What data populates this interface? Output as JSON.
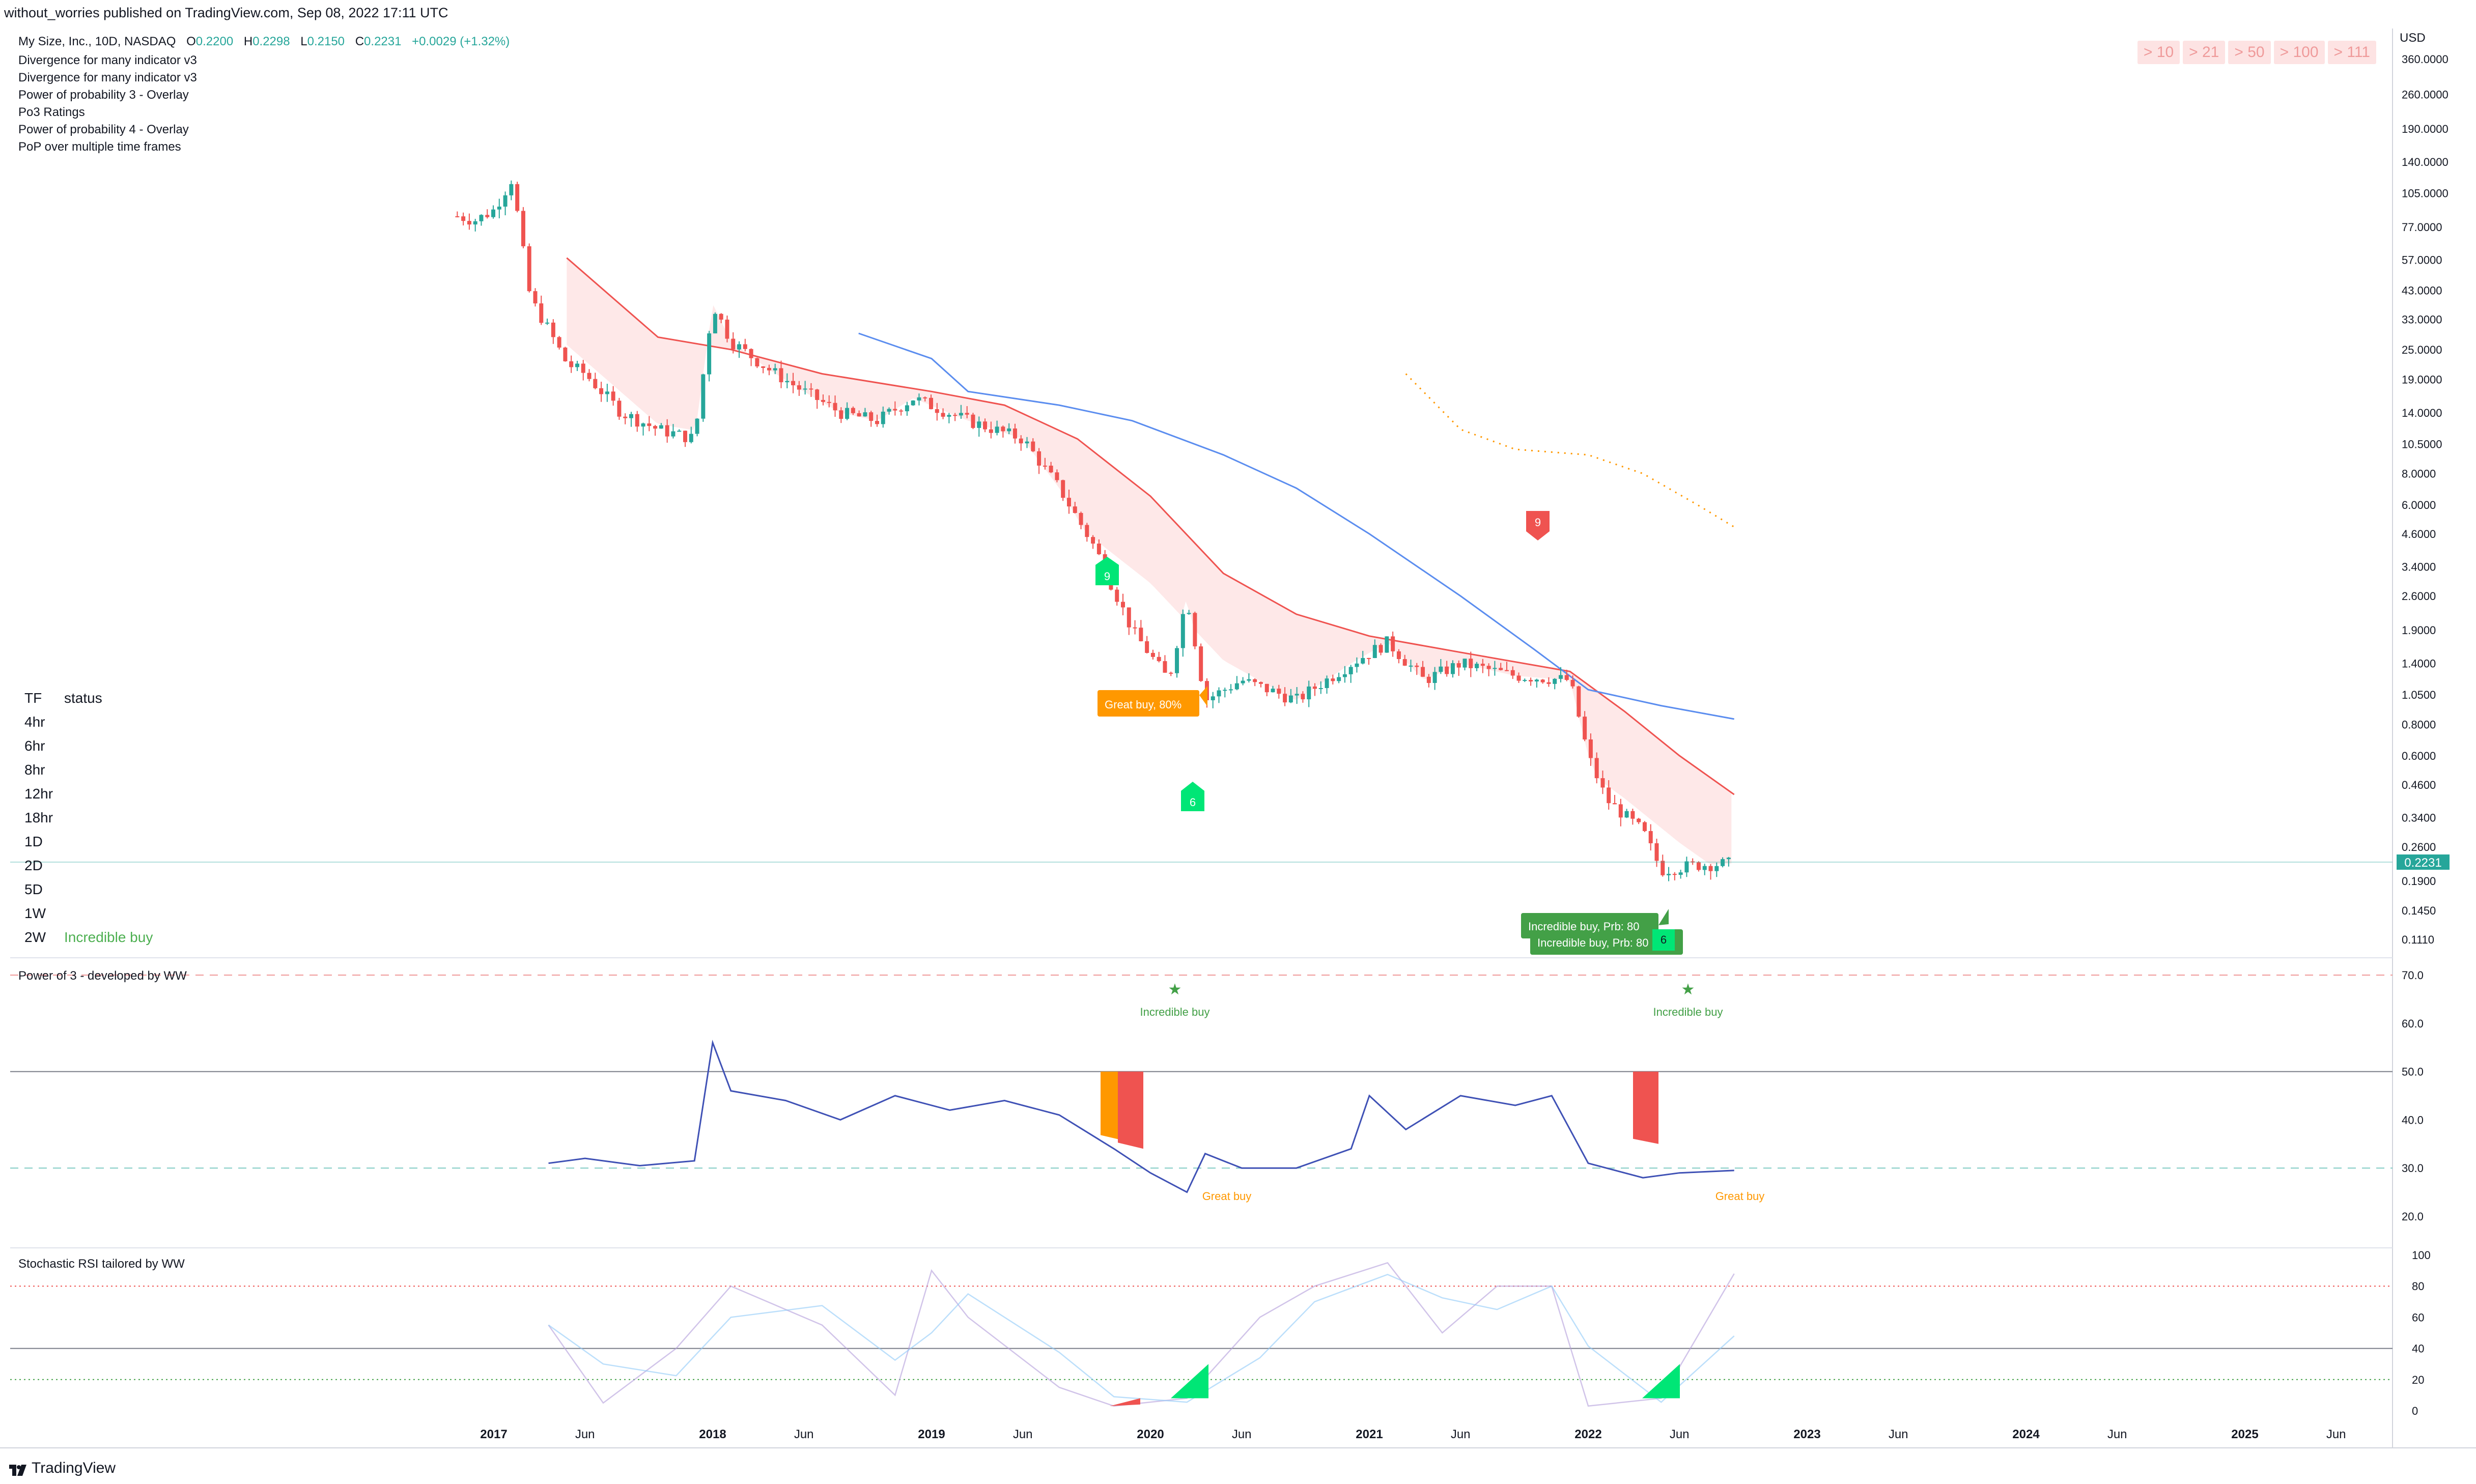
{
  "header": {
    "published": "without_worries published on TradingView.com, Sep 08, 2022 17:11 UTC"
  },
  "symbol": {
    "name": "My Size, Inc., 10D, NASDAQ",
    "o_label": "O",
    "o": "0.2200",
    "h_label": "H",
    "h": "0.2298",
    "l_label": "L",
    "l": "0.2150",
    "c_label": "C",
    "c": "0.2231",
    "change": "+0.0029 (+1.32%)"
  },
  "indicators": [
    "Divergence for many indicator v3",
    "Divergence for many indicator v3",
    "Power of probability 3 - Overlay",
    "Po3 Ratings",
    "Power of probability 4 - Overlay",
    "PoP over multiple time frames"
  ],
  "badges": [
    "> 10",
    "> 21",
    "> 50",
    "> 100",
    "> 111"
  ],
  "tf_table": {
    "header": {
      "tf": "TF",
      "status": "status"
    },
    "rows": [
      {
        "tf": "4hr",
        "status": ""
      },
      {
        "tf": "6hr",
        "status": ""
      },
      {
        "tf": "8hr",
        "status": ""
      },
      {
        "tf": "12hr",
        "status": ""
      },
      {
        "tf": "18hr",
        "status": ""
      },
      {
        "tf": "1D",
        "status": ""
      },
      {
        "tf": "2D",
        "status": ""
      },
      {
        "tf": "5D",
        "status": ""
      },
      {
        "tf": "1W",
        "status": ""
      },
      {
        "tf": "2W",
        "status": "Incredible buy"
      }
    ]
  },
  "price_axis": {
    "currency": "USD",
    "ticks": [
      "360.0000",
      "260.0000",
      "190.0000",
      "140.0000",
      "105.0000",
      "77.0000",
      "57.0000",
      "43.0000",
      "33.0000",
      "25.0000",
      "19.0000",
      "14.0000",
      "10.5000",
      "8.0000",
      "6.0000",
      "4.6000",
      "3.4000",
      "2.6000",
      "1.9000",
      "1.4000",
      "1.0500",
      "0.8000",
      "0.6000",
      "0.4600",
      "0.3400",
      "0.2600",
      "0.1900",
      "0.1450",
      "0.1110"
    ],
    "last_price": "0.2231"
  },
  "annotations": {
    "great_buy_box": "Great buy,  80%",
    "incredible_box_1": "Incredible buy, Prb: 80",
    "incredible_box_2": "Incredible buy, Prb: 80",
    "marker_9_green": "9",
    "marker_6_green_a": "6",
    "marker_9_red": "9",
    "marker_6_green_b": "6"
  },
  "po3": {
    "title": "Power of 3 - developed by WW",
    "ticks": [
      "70.0",
      "60.0",
      "50.0",
      "40.0",
      "30.0",
      "20.0"
    ],
    "incredible_buy_1": "Incredible buy",
    "incredible_buy_2": "Incredible buy",
    "great_buy_1": "Great buy",
    "great_buy_2": "Great buy"
  },
  "stoch": {
    "title": "Stochastic RSI tailored by WW",
    "ticks": [
      "100",
      "80",
      "60",
      "40",
      "20",
      "0"
    ]
  },
  "time_axis": {
    "labels": [
      "2017",
      "Jun",
      "2018",
      "Jun",
      "2019",
      "Jun",
      "2020",
      "Jun",
      "2021",
      "Jun",
      "2022",
      "Jun",
      "2023",
      "Jun",
      "2024",
      "Jun",
      "2025",
      "Jun"
    ]
  },
  "footer": {
    "brand": "TradingView"
  },
  "colors": {
    "bull": "#26a69a",
    "bear": "#ef5350",
    "ma_red": "#ef5350",
    "ma_blue": "#5b8def",
    "cloud": "#fde0e0",
    "green_marker": "#00e676",
    "orange": "#ff9800",
    "po3_line": "#3f51b5"
  },
  "chart_data": [
    {
      "type": "candlestick",
      "title": "My Size, Inc., 10D, NASDAQ",
      "y_scale": "log",
      "ylim": [
        0.1,
        400
      ],
      "x_range": [
        "2016-10",
        "2025-09"
      ],
      "close_path": [
        {
          "x": "2016-11",
          "y": 85
        },
        {
          "x": "2016-12",
          "y": 82
        },
        {
          "x": "2017-01",
          "y": 90
        },
        {
          "x": "2017-02",
          "y": 120
        },
        {
          "x": "2017-03",
          "y": 40
        },
        {
          "x": "2017-04",
          "y": 30
        },
        {
          "x": "2017-05",
          "y": 22
        },
        {
          "x": "2017-06",
          "y": 20
        },
        {
          "x": "2017-08",
          "y": 14
        },
        {
          "x": "2017-10",
          "y": 12
        },
        {
          "x": "2017-12",
          "y": 11
        },
        {
          "x": "2018-01",
          "y": 38
        },
        {
          "x": "2018-02",
          "y": 27
        },
        {
          "x": "2018-04",
          "y": 21
        },
        {
          "x": "2018-06",
          "y": 17
        },
        {
          "x": "2018-08",
          "y": 14
        },
        {
          "x": "2018-10",
          "y": 13
        },
        {
          "x": "2018-12",
          "y": 16
        },
        {
          "x": "2019-03",
          "y": 13
        },
        {
          "x": "2019-06",
          "y": 11
        },
        {
          "x": "2019-08",
          "y": 7
        },
        {
          "x": "2019-10",
          "y": 4
        },
        {
          "x": "2019-12",
          "y": 1.9
        },
        {
          "x": "2020-02",
          "y": 1.2
        },
        {
          "x": "2020-03",
          "y": 2.6
        },
        {
          "x": "2020-04",
          "y": 1.0
        },
        {
          "x": "2020-06",
          "y": 1.2
        },
        {
          "x": "2020-09",
          "y": 1.0
        },
        {
          "x": "2020-12",
          "y": 1.4
        },
        {
          "x": "2021-02",
          "y": 1.7
        },
        {
          "x": "2021-04",
          "y": 1.2
        },
        {
          "x": "2021-06",
          "y": 1.4
        },
        {
          "x": "2021-09",
          "y": 1.25
        },
        {
          "x": "2021-12",
          "y": 1.2
        },
        {
          "x": "2022-01",
          "y": 0.6
        },
        {
          "x": "2022-02",
          "y": 0.4
        },
        {
          "x": "2022-04",
          "y": 0.3
        },
        {
          "x": "2022-05",
          "y": 0.21
        },
        {
          "x": "2022-07",
          "y": 0.22
        },
        {
          "x": "2022-09",
          "y": 0.2231
        }
      ],
      "series": [
        {
          "name": "MA fast",
          "points": [
            {
              "x": "2017-05",
              "y": 58
            },
            {
              "x": "2017-10",
              "y": 28
            },
            {
              "x": "2018-02",
              "y": 25
            },
            {
              "x": "2018-07",
              "y": 20
            },
            {
              "x": "2019-01",
              "y": 17
            },
            {
              "x": "2019-05",
              "y": 15
            },
            {
              "x": "2019-09",
              "y": 11
            },
            {
              "x": "2020-01",
              "y": 6.5
            },
            {
              "x": "2020-05",
              "y": 3.2
            },
            {
              "x": "2020-09",
              "y": 2.2
            },
            {
              "x": "2021-01",
              "y": 1.8
            },
            {
              "x": "2021-06",
              "y": 1.55
            },
            {
              "x": "2021-12",
              "y": 1.3
            },
            {
              "x": "2022-03",
              "y": 0.9
            },
            {
              "x": "2022-06",
              "y": 0.6
            },
            {
              "x": "2022-09",
              "y": 0.42
            }
          ]
        },
        {
          "name": "MA slow",
          "points": [
            {
              "x": "2018-09",
              "y": 29
            },
            {
              "x": "2019-01",
              "y": 23
            },
            {
              "x": "2019-03",
              "y": 17
            },
            {
              "x": "2019-08",
              "y": 15
            },
            {
              "x": "2019-12",
              "y": 13
            },
            {
              "x": "2020-05",
              "y": 9.5
            },
            {
              "x": "2020-09",
              "y": 7
            },
            {
              "x": "2021-01",
              "y": 4.6
            },
            {
              "x": "2021-06",
              "y": 2.6
            },
            {
              "x": "2021-10",
              "y": 1.6
            },
            {
              "x": "2022-01",
              "y": 1.1
            },
            {
              "x": "2022-05",
              "y": 0.95
            },
            {
              "x": "2022-09",
              "y": 0.84
            }
          ]
        },
        {
          "name": "dotted",
          "points": [
            {
              "x": "2021-03",
              "y": 20
            },
            {
              "x": "2021-06",
              "y": 12
            },
            {
              "x": "2021-09",
              "y": 10
            },
            {
              "x": "2022-01",
              "y": 9.5
            },
            {
              "x": "2022-04",
              "y": 8
            },
            {
              "x": "2022-07",
              "y": 6
            },
            {
              "x": "2022-09",
              "y": 4.9
            }
          ]
        }
      ]
    },
    {
      "type": "line",
      "title": "Power of 3 - developed by WW",
      "ylim": [
        15,
        72
      ],
      "levels": [
        70,
        50,
        30
      ],
      "series": [
        {
          "name": "Po3",
          "points": [
            {
              "x": "2017-04",
              "y": 31
            },
            {
              "x": "2017-06",
              "y": 32
            },
            {
              "x": "2017-09",
              "y": 30.5
            },
            {
              "x": "2017-12",
              "y": 31.5
            },
            {
              "x": "2018-01",
              "y": 56
            },
            {
              "x": "2018-02",
              "y": 46
            },
            {
              "x": "2018-05",
              "y": 44
            },
            {
              "x": "2018-08",
              "y": 40
            },
            {
              "x": "2018-11",
              "y": 45
            },
            {
              "x": "2019-02",
              "y": 42
            },
            {
              "x": "2019-05",
              "y": 44
            },
            {
              "x": "2019-08",
              "y": 41
            },
            {
              "x": "2019-11",
              "y": 34
            },
            {
              "x": "2020-01",
              "y": 29
            },
            {
              "x": "2020-03",
              "y": 25
            },
            {
              "x": "2020-04",
              "y": 33
            },
            {
              "x": "2020-06",
              "y": 30
            },
            {
              "x": "2020-09",
              "y": 30
            },
            {
              "x": "2020-12",
              "y": 34
            },
            {
              "x": "2021-01",
              "y": 45
            },
            {
              "x": "2021-03",
              "y": 38
            },
            {
              "x": "2021-06",
              "y": 45
            },
            {
              "x": "2021-09",
              "y": 43
            },
            {
              "x": "2021-11",
              "y": 45
            },
            {
              "x": "2022-01",
              "y": 31
            },
            {
              "x": "2022-04",
              "y": 28
            },
            {
              "x": "2022-06",
              "y": 29
            },
            {
              "x": "2022-09",
              "y": 29.5
            }
          ]
        }
      ]
    },
    {
      "type": "line",
      "title": "Stochastic RSI tailored by WW",
      "ylim": [
        0,
        100
      ],
      "levels": [
        80,
        40,
        20
      ],
      "series": [
        {
          "name": "K",
          "points": [
            {
              "x": "2017-04",
              "y": 55
            },
            {
              "x": "2017-07",
              "y": 5
            },
            {
              "x": "2017-11",
              "y": 40
            },
            {
              "x": "2018-02",
              "y": 80
            },
            {
              "x": "2018-07",
              "y": 55
            },
            {
              "x": "2018-11",
              "y": 10
            },
            {
              "x": "2019-01",
              "y": 90
            },
            {
              "x": "2019-03",
              "y": 60
            },
            {
              "x": "2019-08",
              "y": 15
            },
            {
              "x": "2019-11",
              "y": 3
            },
            {
              "x": "2020-03",
              "y": 8
            },
            {
              "x": "2020-07",
              "y": 60
            },
            {
              "x": "2020-10",
              "y": 80
            },
            {
              "x": "2021-02",
              "y": 95
            },
            {
              "x": "2021-05",
              "y": 50
            },
            {
              "x": "2021-08",
              "y": 80
            },
            {
              "x": "2021-11",
              "y": 80
            },
            {
              "x": "2022-01",
              "y": 3
            },
            {
              "x": "2022-05",
              "y": 8
            },
            {
              "x": "2022-09",
              "y": 88
            }
          ]
        }
      ]
    }
  ]
}
